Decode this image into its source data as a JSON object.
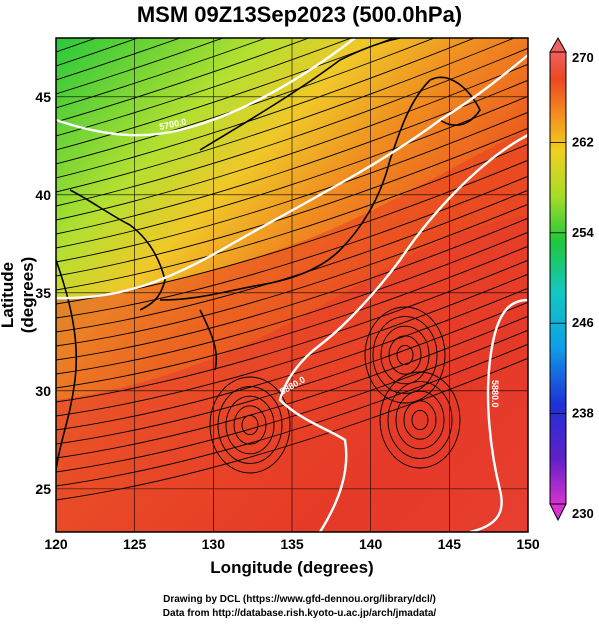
{
  "title": "MSM 09Z13Sep2023 (500.0hPa)",
  "xlabel": "Longitude (degrees)",
  "ylabel": "Latitude  (degrees)",
  "x_ticks": [
    "120",
    "125",
    "130",
    "135",
    "140",
    "145",
    "150"
  ],
  "y_ticks": [
    "25",
    "30",
    "35",
    "40",
    "45"
  ],
  "colorbar_ticks": [
    "270",
    "262",
    "254",
    "246",
    "238",
    "230"
  ],
  "contour_labels": [
    "5700.0",
    "5820.0",
    "5880.0"
  ],
  "credit_lines": [
    "Drawing by DCL (https://www.gfd-dennou.org/library/dcl/)",
    "Data from http://database.rish.kyoto-u.ac.jp/arch/jmadata/"
  ],
  "colors": {
    "cold": "#3ec83a",
    "mid": "#e8e82a",
    "warm": "#f0781e",
    "hot": "#e83020",
    "contour": "#ffffff"
  }
}
